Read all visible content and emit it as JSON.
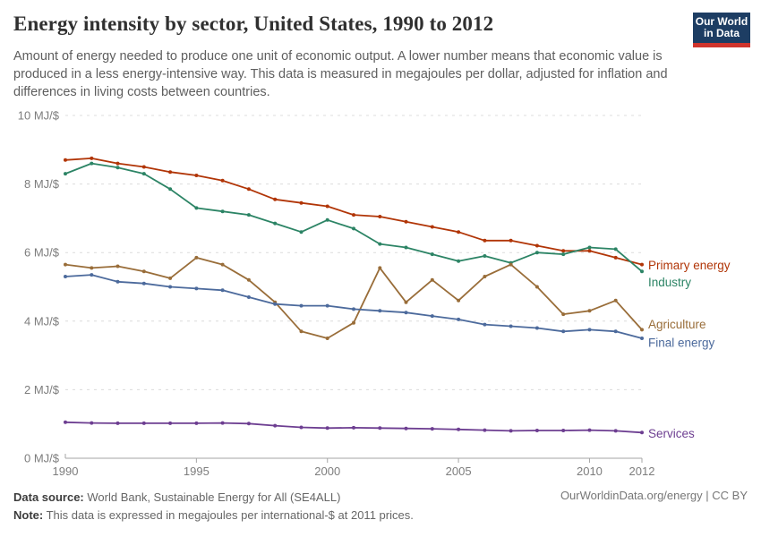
{
  "header": {
    "title": "Energy intensity by sector, United States, 1990 to 2012",
    "subtitle": "Amount of energy needed to produce one unit of economic output. A lower number means that economic value is produced in a less energy-intensive way. This data is measured in megajoules per dollar, adjusted for inflation and differences in living costs between countries.",
    "logo": {
      "line1": "Our World",
      "line2": "in Data",
      "bg_color": "#1d3d63",
      "stripe_color": "#d0342c"
    }
  },
  "chart_data": {
    "type": "line",
    "title": "Energy intensity by sector, United States, 1990 to 2012",
    "unit": "MJ/$",
    "ylabel": "",
    "xlabel": "",
    "ylim": [
      0,
      10
    ],
    "y_ticks": [
      0,
      2,
      4,
      6,
      8,
      10
    ],
    "y_tick_suffix": " MJ/$",
    "x_ticks": [
      1990,
      1995,
      2000,
      2005,
      2010,
      2012
    ],
    "grid": "horizontal-dashed",
    "legend_position": "right-end-labels",
    "x": [
      1990,
      1991,
      1992,
      1993,
      1994,
      1995,
      1996,
      1997,
      1998,
      1999,
      2000,
      2001,
      2002,
      2003,
      2004,
      2005,
      2006,
      2007,
      2008,
      2009,
      2010,
      2011,
      2012
    ],
    "series": [
      {
        "name": "Primary energy",
        "color": "#b13507",
        "values": [
          8.7,
          8.75,
          8.6,
          8.5,
          8.35,
          8.25,
          8.1,
          7.85,
          7.55,
          7.45,
          7.35,
          7.1,
          7.05,
          6.9,
          6.75,
          6.6,
          6.35,
          6.35,
          6.2,
          6.05,
          6.05,
          5.85,
          5.65
        ]
      },
      {
        "name": "Industry",
        "color": "#2c8465",
        "values": [
          8.3,
          8.6,
          8.48,
          8.3,
          7.85,
          7.3,
          7.2,
          7.1,
          6.85,
          6.6,
          6.95,
          6.7,
          6.25,
          6.15,
          5.95,
          5.75,
          5.9,
          5.7,
          6.0,
          5.95,
          6.15,
          6.1,
          5.45
        ]
      },
      {
        "name": "Agriculture",
        "color": "#996d39",
        "values": [
          5.65,
          5.55,
          5.6,
          5.45,
          5.25,
          5.85,
          5.65,
          5.2,
          4.55,
          3.7,
          3.5,
          3.95,
          5.55,
          4.55,
          5.2,
          4.6,
          5.3,
          5.65,
          5.0,
          4.2,
          4.3,
          4.6,
          3.75
        ]
      },
      {
        "name": "Final energy",
        "color": "#4c6a9c",
        "values": [
          5.3,
          5.35,
          5.15,
          5.1,
          5.0,
          4.95,
          4.9,
          4.7,
          4.5,
          4.45,
          4.45,
          4.35,
          4.3,
          4.25,
          4.15,
          4.05,
          3.9,
          3.85,
          3.8,
          3.7,
          3.75,
          3.7,
          3.5
        ]
      },
      {
        "name": "Services",
        "color": "#6d3e91",
        "values": [
          1.05,
          1.03,
          1.02,
          1.02,
          1.02,
          1.02,
          1.03,
          1.01,
          0.95,
          0.9,
          0.88,
          0.89,
          0.88,
          0.87,
          0.86,
          0.84,
          0.82,
          0.8,
          0.81,
          0.81,
          0.82,
          0.8,
          0.75
        ]
      }
    ]
  },
  "footer": {
    "source_label": "Data source:",
    "source_text": "World Bank, Sustainable Energy for All (SE4ALL)",
    "note_label": "Note:",
    "note_text": "This data is expressed in megajoules per international-$ at 2011 prices.",
    "link": "OurWorldinData.org/energy | CC BY"
  }
}
